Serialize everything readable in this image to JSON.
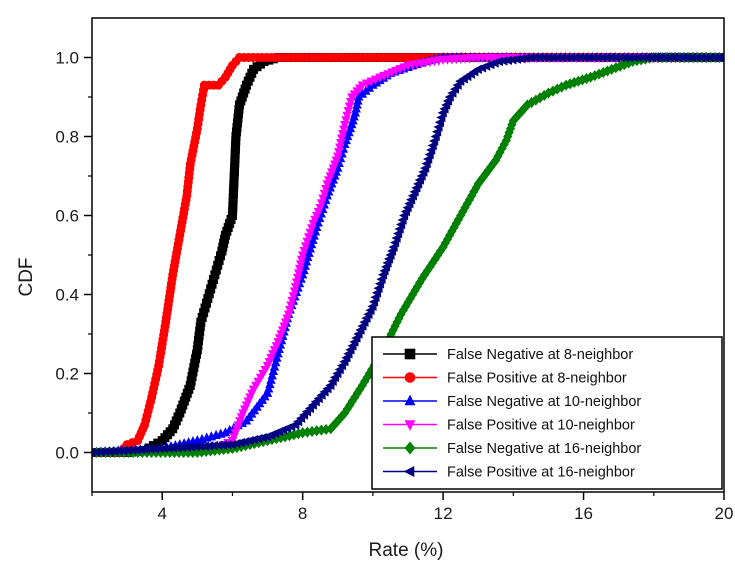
{
  "chart_data": {
    "type": "line",
    "title": "",
    "xlabel": "Rate (%)",
    "ylabel": "CDF",
    "xlim": [
      2,
      20
    ],
    "ylim": [
      -0.1,
      1.1
    ],
    "x_ticks": [
      4,
      8,
      12,
      16,
      20
    ],
    "y_ticks": [
      0.0,
      0.2,
      0.4,
      0.6,
      0.8,
      1.0
    ],
    "x_tick_labels": [
      "4",
      "8",
      "12",
      "16",
      "20"
    ],
    "y_tick_labels": [
      "0.0",
      "0.2",
      "0.4",
      "0.6",
      "0.8",
      "1.0"
    ],
    "grid": false,
    "legend_position": "bottom-right",
    "series": [
      {
        "name": "False Negative at 8-neighbor",
        "color": "#000000",
        "marker": "square",
        "points": [
          [
            2,
            0
          ],
          [
            3,
            0
          ],
          [
            3.5,
            0.005
          ],
          [
            4.0,
            0.03
          ],
          [
            4.3,
            0.06
          ],
          [
            4.5,
            0.1
          ],
          [
            4.8,
            0.17
          ],
          [
            5.0,
            0.26
          ],
          [
            5.1,
            0.33
          ],
          [
            5.3,
            0.39
          ],
          [
            5.5,
            0.45
          ],
          [
            5.7,
            0.51
          ],
          [
            5.8,
            0.55
          ],
          [
            6.0,
            0.6
          ],
          [
            6.05,
            0.7
          ],
          [
            6.1,
            0.8
          ],
          [
            6.2,
            0.88
          ],
          [
            6.4,
            0.93
          ],
          [
            6.6,
            0.97
          ],
          [
            6.9,
            0.99
          ],
          [
            7.3,
            1.0
          ],
          [
            20,
            1.0
          ]
        ]
      },
      {
        "name": "False Positive at 8-neighbor",
        "color": "#ff0000",
        "marker": "circle",
        "points": [
          [
            2,
            0
          ],
          [
            2.8,
            0.0
          ],
          [
            3.0,
            0.02
          ],
          [
            3.3,
            0.03
          ],
          [
            3.5,
            0.07
          ],
          [
            3.7,
            0.14
          ],
          [
            3.9,
            0.22
          ],
          [
            4.1,
            0.33
          ],
          [
            4.3,
            0.45
          ],
          [
            4.5,
            0.55
          ],
          [
            4.7,
            0.65
          ],
          [
            4.8,
            0.73
          ],
          [
            5.0,
            0.82
          ],
          [
            5.1,
            0.88
          ],
          [
            5.2,
            0.93
          ],
          [
            5.6,
            0.93
          ],
          [
            5.8,
            0.95
          ],
          [
            6.0,
            0.98
          ],
          [
            6.2,
            1.0
          ],
          [
            20,
            1.0
          ]
        ]
      },
      {
        "name": "False Negative at 10-neighbor",
        "color": "#0000ff",
        "marker": "triangle-up",
        "points": [
          [
            2,
            0
          ],
          [
            4.0,
            0.01
          ],
          [
            5.0,
            0.03
          ],
          [
            5.8,
            0.05
          ],
          [
            6.4,
            0.08
          ],
          [
            7.0,
            0.15
          ],
          [
            7.3,
            0.25
          ],
          [
            7.6,
            0.35
          ],
          [
            8.0,
            0.45
          ],
          [
            8.4,
            0.57
          ],
          [
            8.7,
            0.65
          ],
          [
            9.0,
            0.72
          ],
          [
            9.2,
            0.78
          ],
          [
            9.4,
            0.83
          ],
          [
            9.5,
            0.86
          ],
          [
            9.6,
            0.9
          ],
          [
            10.0,
            0.93
          ],
          [
            10.5,
            0.96
          ],
          [
            11.5,
            0.99
          ],
          [
            12.0,
            1.0
          ],
          [
            20,
            1.0
          ]
        ]
      },
      {
        "name": "False Positive at 10-neighbor",
        "color": "#ff00ff",
        "marker": "triangle-down",
        "points": [
          [
            2,
            0
          ],
          [
            5.5,
            0.01
          ],
          [
            6.0,
            0.03
          ],
          [
            6.3,
            0.1
          ],
          [
            6.6,
            0.16
          ],
          [
            7.0,
            0.22
          ],
          [
            7.3,
            0.28
          ],
          [
            7.6,
            0.35
          ],
          [
            7.8,
            0.42
          ],
          [
            8.0,
            0.5
          ],
          [
            8.3,
            0.58
          ],
          [
            8.5,
            0.62
          ],
          [
            8.7,
            0.68
          ],
          [
            9.0,
            0.75
          ],
          [
            9.2,
            0.83
          ],
          [
            9.4,
            0.9
          ],
          [
            9.7,
            0.93
          ],
          [
            10.2,
            0.95
          ],
          [
            11.0,
            0.98
          ],
          [
            12.0,
            0.995
          ],
          [
            13.0,
            1.0
          ],
          [
            20,
            1.0
          ]
        ]
      },
      {
        "name": "False Negative at 16-neighbor",
        "color": "#008000",
        "marker": "diamond",
        "points": [
          [
            2,
            0
          ],
          [
            5.0,
            0.0
          ],
          [
            6.0,
            0.01
          ],
          [
            7.0,
            0.03
          ],
          [
            8.0,
            0.05
          ],
          [
            8.8,
            0.06
          ],
          [
            9.2,
            0.1
          ],
          [
            9.7,
            0.17
          ],
          [
            10.3,
            0.26
          ],
          [
            10.8,
            0.35
          ],
          [
            11.4,
            0.44
          ],
          [
            12.0,
            0.52
          ],
          [
            12.5,
            0.6
          ],
          [
            13.0,
            0.68
          ],
          [
            13.5,
            0.74
          ],
          [
            13.8,
            0.79
          ],
          [
            14.0,
            0.84
          ],
          [
            14.4,
            0.88
          ],
          [
            15.0,
            0.91
          ],
          [
            15.5,
            0.93
          ],
          [
            16.2,
            0.95
          ],
          [
            16.8,
            0.97
          ],
          [
            17.4,
            0.99
          ],
          [
            18.0,
            1.0
          ],
          [
            20,
            1.0
          ]
        ]
      },
      {
        "name": "False Positive at 16-neighbor",
        "color": "#000080",
        "marker": "triangle-left",
        "points": [
          [
            2,
            0
          ],
          [
            6.0,
            0.02
          ],
          [
            7.0,
            0.04
          ],
          [
            7.8,
            0.07
          ],
          [
            8.3,
            0.12
          ],
          [
            8.8,
            0.17
          ],
          [
            9.2,
            0.23
          ],
          [
            9.6,
            0.3
          ],
          [
            10.0,
            0.37
          ],
          [
            10.3,
            0.45
          ],
          [
            10.6,
            0.52
          ],
          [
            10.9,
            0.6
          ],
          [
            11.2,
            0.66
          ],
          [
            11.5,
            0.72
          ],
          [
            11.8,
            0.8
          ],
          [
            12.0,
            0.86
          ],
          [
            12.2,
            0.9
          ],
          [
            12.5,
            0.94
          ],
          [
            13.0,
            0.97
          ],
          [
            13.6,
            0.99
          ],
          [
            14.5,
            1.0
          ],
          [
            20,
            1.0
          ]
        ]
      }
    ]
  }
}
